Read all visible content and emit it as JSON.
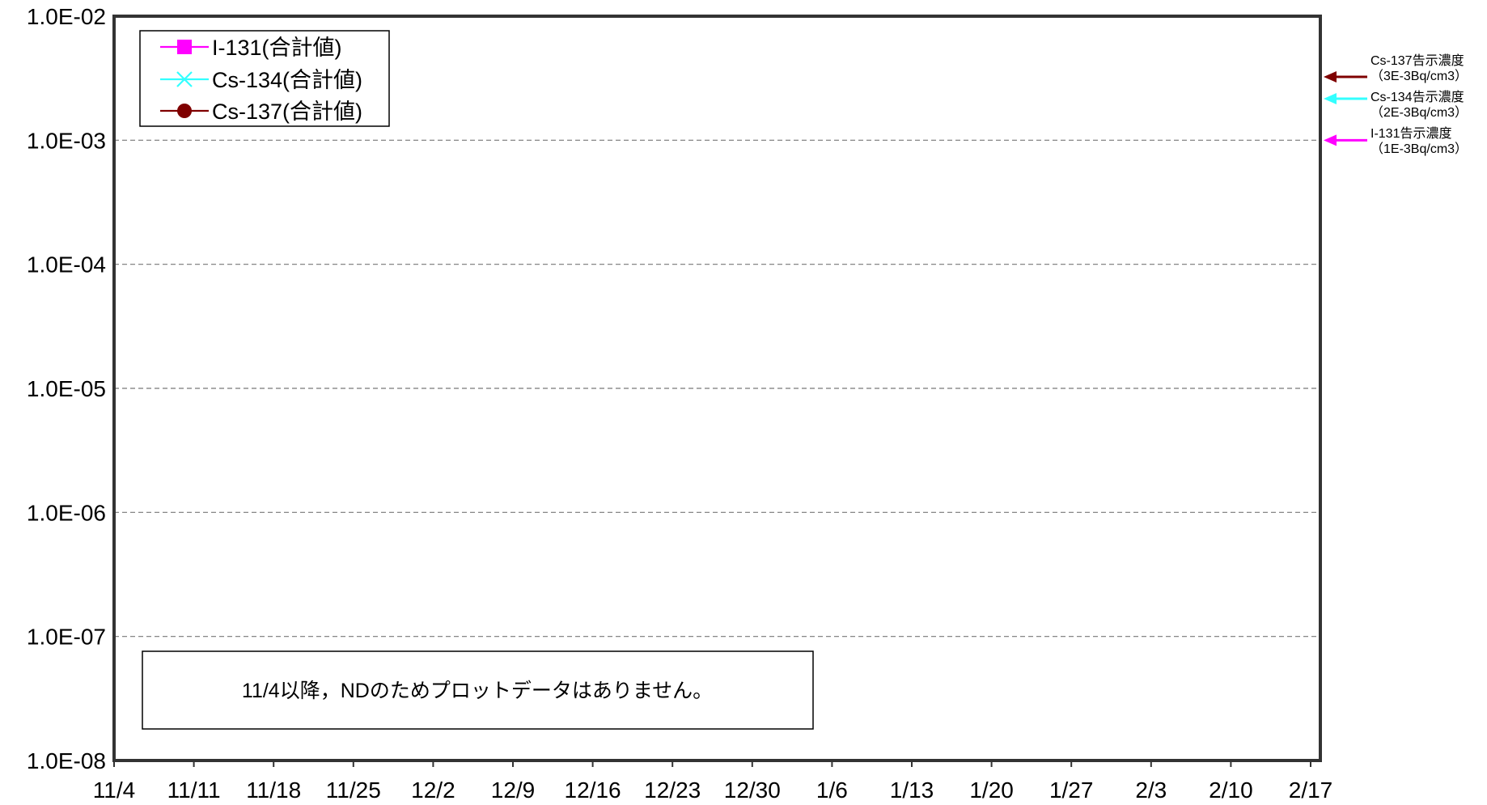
{
  "chart_data": {
    "type": "line",
    "title": "",
    "xlabel": "",
    "ylabel": "",
    "y_scale": "log",
    "ylim": [
      1e-08,
      0.01
    ],
    "y_ticks": [
      "1.0E-02",
      "1.0E-03",
      "1.0E-04",
      "1.0E-05",
      "1.0E-06",
      "1.0E-07",
      "1.0E-08"
    ],
    "y_tick_values": [
      0.01,
      0.001,
      0.0001,
      1e-05,
      1e-06,
      1e-07,
      1e-08
    ],
    "x_ticks": [
      "11/4",
      "11/11",
      "11/18",
      "11/25",
      "12/2",
      "12/9",
      "12/16",
      "12/23",
      "12/30",
      "1/6",
      "1/13",
      "1/20",
      "1/27",
      "2/3",
      "2/10",
      "2/17"
    ],
    "grid": "horizontal dashed",
    "legend_position": "top-left",
    "series": [
      {
        "name": "I-131(合計値)",
        "color": "#ff00ff",
        "marker": "square",
        "values": []
      },
      {
        "name": "Cs-134(合計値)",
        "color": "#33ffff",
        "marker": "x",
        "values": []
      },
      {
        "name": "Cs-137(合計値)",
        "color": "#7f0000",
        "marker": "circle",
        "values": []
      }
    ],
    "reference_lines": [
      {
        "label": "Cs-137告示濃度",
        "sublabel": "（3E-3Bq/cm3）",
        "value": 0.003,
        "color": "#7f0000"
      },
      {
        "label": "Cs-134告示濃度",
        "sublabel": "（2E-3Bq/cm3）",
        "value": 0.002,
        "color": "#33ffff"
      },
      {
        "label": "I-131告示濃度",
        "sublabel": "（1E-3Bq/cm3）",
        "value": 0.001,
        "color": "#ff00ff"
      }
    ],
    "annotation": "11/4以降，NDのためプロットデータはありません。"
  }
}
